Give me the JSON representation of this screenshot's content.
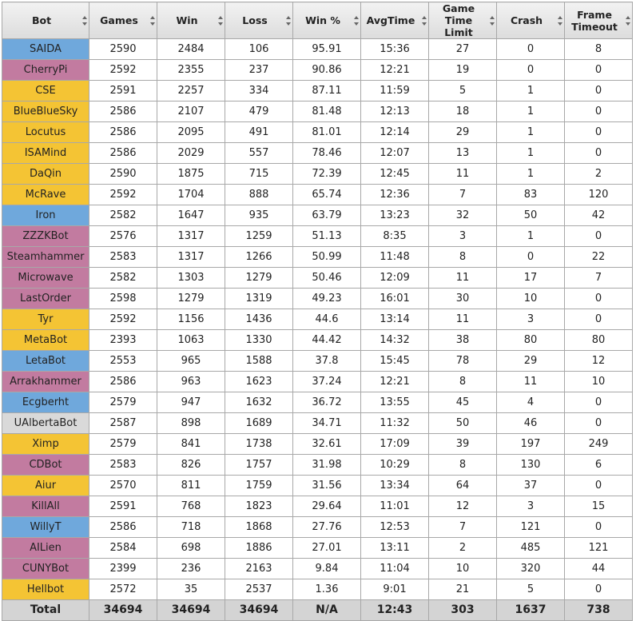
{
  "table": {
    "columns": [
      "Bot",
      "Games",
      "Win",
      "Loss",
      "Win %",
      "AvgTime",
      "Game Time Limit",
      "Crash",
      "Frame Timeout"
    ],
    "rows": [
      {
        "color": "#6fa8dc",
        "cells": [
          "SAIDA",
          2590,
          2484,
          106,
          95.91,
          "15:36",
          27,
          0,
          8
        ]
      },
      {
        "color": "#c27ba0",
        "cells": [
          "CherryPi",
          2592,
          2355,
          237,
          90.86,
          "12:21",
          19,
          0,
          0
        ]
      },
      {
        "color": "#f4c434",
        "cells": [
          "CSE",
          2591,
          2257,
          334,
          87.11,
          "11:59",
          5,
          1,
          0
        ]
      },
      {
        "color": "#f4c434",
        "cells": [
          "BlueBlueSky",
          2586,
          2107,
          479,
          81.48,
          "12:13",
          18,
          1,
          0
        ]
      },
      {
        "color": "#f4c434",
        "cells": [
          "Locutus",
          2586,
          2095,
          491,
          81.01,
          "12:14",
          29,
          1,
          0
        ]
      },
      {
        "color": "#f4c434",
        "cells": [
          "ISAMind",
          2586,
          2029,
          557,
          78.46,
          "12:07",
          13,
          1,
          0
        ]
      },
      {
        "color": "#f4c434",
        "cells": [
          "DaQin",
          2590,
          1875,
          715,
          72.39,
          "12:45",
          11,
          1,
          2
        ]
      },
      {
        "color": "#f4c434",
        "cells": [
          "McRave",
          2592,
          1704,
          888,
          65.74,
          "12:36",
          7,
          83,
          120
        ]
      },
      {
        "color": "#6fa8dc",
        "cells": [
          "Iron",
          2582,
          1647,
          935,
          63.79,
          "13:23",
          32,
          50,
          42
        ]
      },
      {
        "color": "#c27ba0",
        "cells": [
          "ZZZKBot",
          2576,
          1317,
          1259,
          51.13,
          "8:35",
          3,
          1,
          0
        ]
      },
      {
        "color": "#c27ba0",
        "cells": [
          "Steamhammer",
          2583,
          1317,
          1266,
          50.99,
          "11:48",
          8,
          0,
          22
        ]
      },
      {
        "color": "#c27ba0",
        "cells": [
          "Microwave",
          2582,
          1303,
          1279,
          50.46,
          "12:09",
          11,
          17,
          7
        ]
      },
      {
        "color": "#c27ba0",
        "cells": [
          "LastOrder",
          2598,
          1279,
          1319,
          49.23,
          "16:01",
          30,
          10,
          0
        ]
      },
      {
        "color": "#f4c434",
        "cells": [
          "Tyr",
          2592,
          1156,
          1436,
          44.6,
          "13:14",
          11,
          3,
          0
        ]
      },
      {
        "color": "#f4c434",
        "cells": [
          "MetaBot",
          2393,
          1063,
          1330,
          44.42,
          "14:32",
          38,
          80,
          80
        ]
      },
      {
        "color": "#6fa8dc",
        "cells": [
          "LetaBot",
          2553,
          965,
          1588,
          37.8,
          "15:45",
          78,
          29,
          12
        ]
      },
      {
        "color": "#c27ba0",
        "cells": [
          "Arrakhammer",
          2586,
          963,
          1623,
          37.24,
          "12:21",
          8,
          11,
          10
        ]
      },
      {
        "color": "#6fa8dc",
        "cells": [
          "Ecgberht",
          2579,
          947,
          1632,
          36.72,
          "13:55",
          45,
          4,
          0
        ]
      },
      {
        "color": "#d9d9d9",
        "cells": [
          "UAlbertaBot",
          2587,
          898,
          1689,
          34.71,
          "11:32",
          50,
          46,
          0
        ]
      },
      {
        "color": "#f4c434",
        "cells": [
          "Ximp",
          2579,
          841,
          1738,
          32.61,
          "17:09",
          39,
          197,
          249
        ]
      },
      {
        "color": "#c27ba0",
        "cells": [
          "CDBot",
          2583,
          826,
          1757,
          31.98,
          "10:29",
          8,
          130,
          6
        ]
      },
      {
        "color": "#f4c434",
        "cells": [
          "Aiur",
          2570,
          811,
          1759,
          31.56,
          "13:34",
          64,
          37,
          0
        ]
      },
      {
        "color": "#c27ba0",
        "cells": [
          "KillAll",
          2591,
          768,
          1823,
          29.64,
          "11:01",
          12,
          3,
          15
        ]
      },
      {
        "color": "#6fa8dc",
        "cells": [
          "WillyT",
          2586,
          718,
          1868,
          27.76,
          "12:53",
          7,
          121,
          0
        ]
      },
      {
        "color": "#c27ba0",
        "cells": [
          "AILien",
          2584,
          698,
          1886,
          27.01,
          "13:11",
          2,
          485,
          121
        ]
      },
      {
        "color": "#c27ba0",
        "cells": [
          "CUNYBot",
          2399,
          236,
          2163,
          9.84,
          "11:04",
          10,
          320,
          44
        ]
      },
      {
        "color": "#f4c434",
        "cells": [
          "Hellbot",
          2572,
          35,
          2537,
          1.36,
          "9:01",
          21,
          5,
          0
        ]
      }
    ],
    "total": [
      "Total",
      34694,
      34694,
      34694,
      "N/A",
      "12:43",
      303,
      1637,
      738
    ]
  }
}
